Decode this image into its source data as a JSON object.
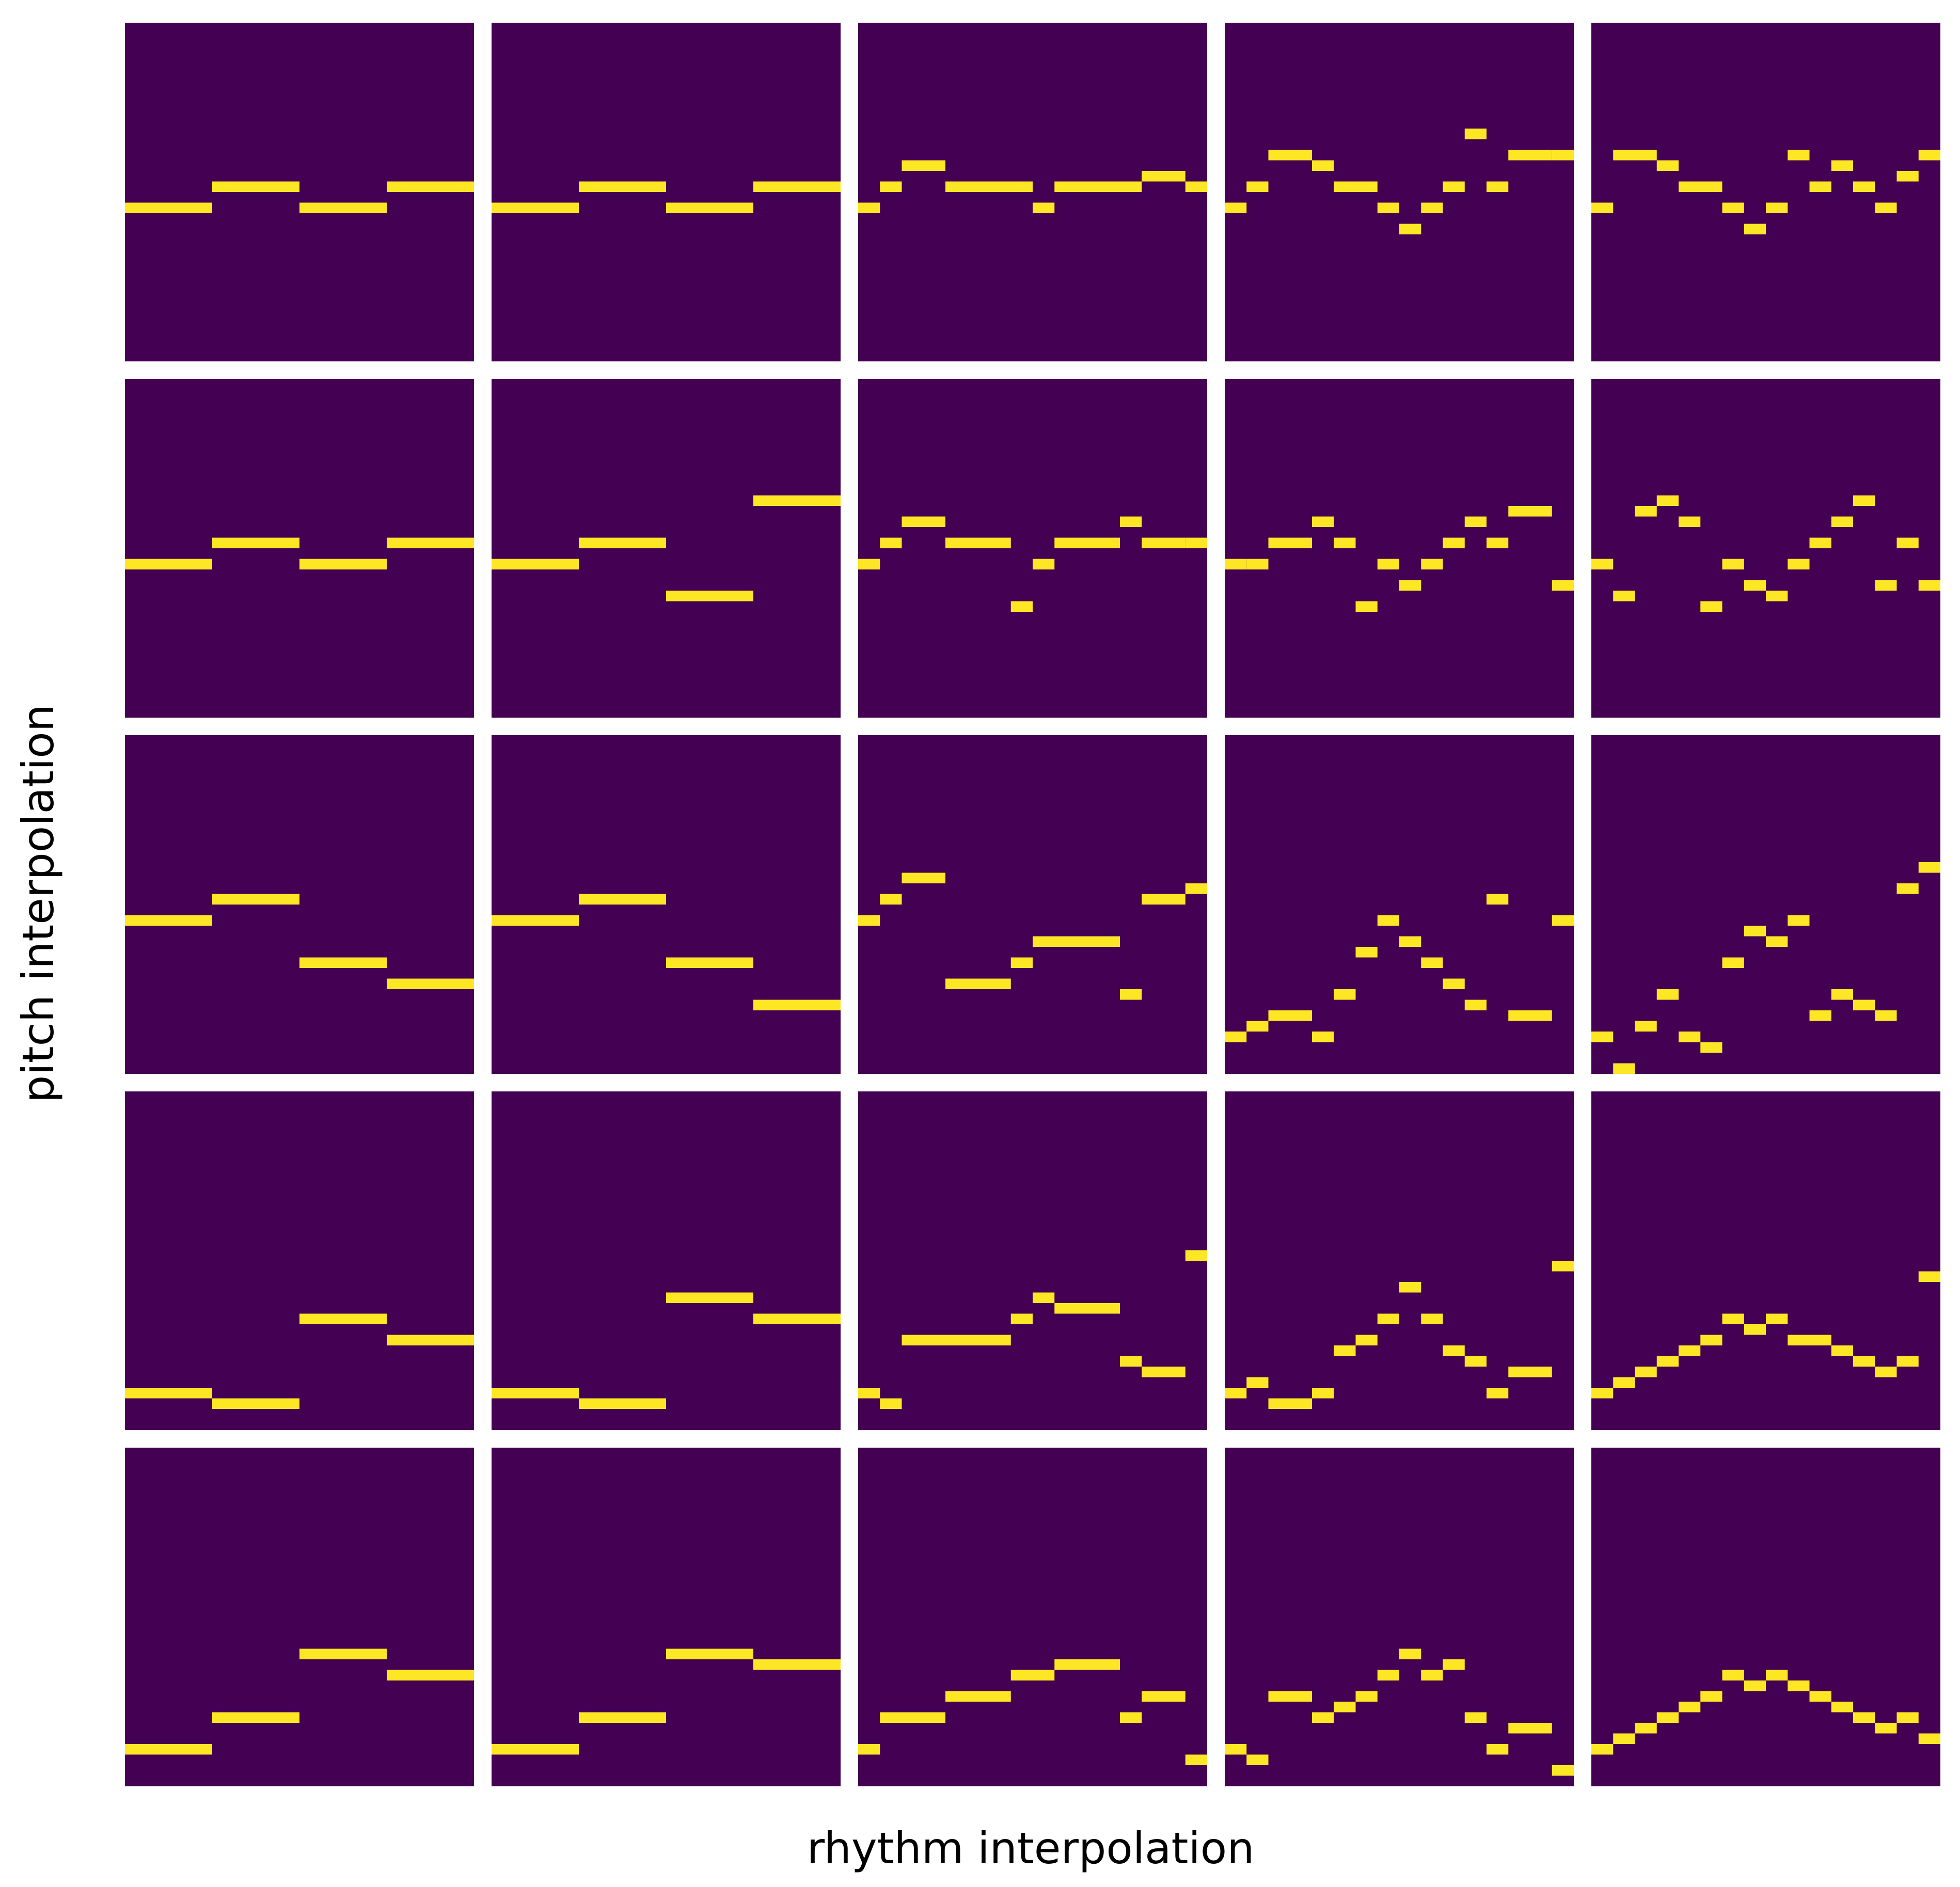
{
  "chart_data": {
    "type": "pianoroll",
    "xlabel": "rhythm interpolation",
    "ylabel": "pitch interpolation",
    "xlim": [
      0,
      16
    ],
    "ylim": [
      0,
      32
    ],
    "background": "#440154",
    "color": "#fde725",
    "panels": [
      [
        [
          [
            0,
            4,
            14
          ],
          [
            4,
            4,
            16
          ],
          [
            8,
            4,
            14
          ],
          [
            12,
            4,
            16
          ]
        ],
        [
          [
            0,
            4,
            14
          ],
          [
            4,
            4,
            16
          ],
          [
            8,
            4,
            14
          ],
          [
            12,
            4,
            16
          ]
        ],
        [
          [
            0,
            1,
            14
          ],
          [
            1,
            1,
            16
          ],
          [
            2,
            2,
            18
          ],
          [
            4,
            4,
            16
          ],
          [
            8,
            1,
            14
          ],
          [
            9,
            3,
            16
          ],
          [
            12,
            1,
            16
          ],
          [
            13,
            2,
            17
          ],
          [
            15,
            1,
            16
          ]
        ],
        [
          [
            0,
            1,
            14
          ],
          [
            1,
            1,
            16
          ],
          [
            2,
            2,
            19
          ],
          [
            4,
            1,
            18
          ],
          [
            5,
            1,
            16
          ],
          [
            6,
            1,
            16
          ],
          [
            7,
            1,
            14
          ],
          [
            8,
            1,
            12
          ],
          [
            9,
            1,
            14
          ],
          [
            10,
            1,
            16
          ],
          [
            11,
            1,
            21
          ],
          [
            12,
            1,
            16
          ],
          [
            13,
            2,
            19
          ],
          [
            15,
            1,
            19
          ]
        ],
        [
          [
            0,
            1,
            14
          ],
          [
            1,
            1,
            19
          ],
          [
            2,
            1,
            19
          ],
          [
            3,
            1,
            18
          ],
          [
            4,
            2,
            16
          ],
          [
            6,
            1,
            14
          ],
          [
            7,
            1,
            12
          ],
          [
            8,
            1,
            14
          ],
          [
            9,
            1,
            19
          ],
          [
            10,
            1,
            16
          ],
          [
            11,
            1,
            18
          ],
          [
            12,
            1,
            16
          ],
          [
            13,
            1,
            14
          ],
          [
            14,
            1,
            17
          ],
          [
            15,
            1,
            19
          ]
        ]
      ],
      [
        [
          [
            0,
            4,
            14
          ],
          [
            4,
            4,
            16
          ],
          [
            8,
            4,
            14
          ],
          [
            12,
            4,
            16
          ]
        ],
        [
          [
            0,
            4,
            14
          ],
          [
            4,
            4,
            16
          ],
          [
            8,
            4,
            11
          ],
          [
            12,
            4,
            20
          ]
        ],
        [
          [
            0,
            1,
            14
          ],
          [
            1,
            1,
            16
          ],
          [
            2,
            2,
            18
          ],
          [
            4,
            3,
            16
          ],
          [
            7,
            1,
            10
          ],
          [
            8,
            1,
            14
          ],
          [
            9,
            3,
            16
          ],
          [
            12,
            1,
            18
          ],
          [
            13,
            2,
            16
          ],
          [
            15,
            1,
            16
          ]
        ],
        [
          [
            0,
            1,
            14
          ],
          [
            1,
            1,
            14
          ],
          [
            2,
            2,
            16
          ],
          [
            4,
            1,
            18
          ],
          [
            5,
            1,
            16
          ],
          [
            6,
            1,
            10
          ],
          [
            7,
            1,
            14
          ],
          [
            8,
            1,
            12
          ],
          [
            9,
            1,
            14
          ],
          [
            10,
            1,
            16
          ],
          [
            11,
            1,
            18
          ],
          [
            12,
            1,
            16
          ],
          [
            13,
            2,
            19
          ],
          [
            15,
            1,
            12
          ]
        ],
        [
          [
            0,
            1,
            14
          ],
          [
            1,
            1,
            11
          ],
          [
            2,
            1,
            19
          ],
          [
            3,
            1,
            20
          ],
          [
            4,
            1,
            18
          ],
          [
            5,
            1,
            10
          ],
          [
            6,
            1,
            14
          ],
          [
            7,
            1,
            12
          ],
          [
            8,
            1,
            11
          ],
          [
            9,
            1,
            14
          ],
          [
            10,
            1,
            16
          ],
          [
            11,
            1,
            18
          ],
          [
            12,
            1,
            20
          ],
          [
            13,
            1,
            12
          ],
          [
            14,
            1,
            16
          ],
          [
            15,
            1,
            12
          ]
        ]
      ],
      [
        [
          [
            0,
            4,
            14
          ],
          [
            4,
            4,
            16
          ],
          [
            8,
            4,
            10
          ],
          [
            12,
            4,
            8
          ]
        ],
        [
          [
            0,
            4,
            14
          ],
          [
            4,
            4,
            16
          ],
          [
            8,
            4,
            10
          ],
          [
            12,
            4,
            6
          ]
        ],
        [
          [
            0,
            1,
            14
          ],
          [
            1,
            1,
            16
          ],
          [
            2,
            2,
            18
          ],
          [
            4,
            3,
            8
          ],
          [
            7,
            1,
            10
          ],
          [
            8,
            4,
            12
          ],
          [
            12,
            1,
            7
          ],
          [
            13,
            2,
            16
          ],
          [
            15,
            1,
            17
          ]
        ],
        [
          [
            0,
            1,
            3
          ],
          [
            1,
            1,
            4
          ],
          [
            2,
            2,
            5
          ],
          [
            4,
            1,
            3
          ],
          [
            5,
            1,
            7
          ],
          [
            6,
            1,
            11
          ],
          [
            7,
            1,
            14
          ],
          [
            8,
            1,
            12
          ],
          [
            9,
            1,
            10
          ],
          [
            10,
            1,
            8
          ],
          [
            11,
            1,
            6
          ],
          [
            12,
            1,
            16
          ],
          [
            13,
            2,
            5
          ],
          [
            15,
            1,
            14
          ]
        ],
        [
          [
            0,
            1,
            3
          ],
          [
            1,
            1,
            0
          ],
          [
            2,
            1,
            4
          ],
          [
            3,
            1,
            7
          ],
          [
            4,
            1,
            3
          ],
          [
            5,
            1,
            2
          ],
          [
            6,
            1,
            10
          ],
          [
            7,
            1,
            13
          ],
          [
            8,
            1,
            12
          ],
          [
            9,
            1,
            14
          ],
          [
            10,
            1,
            5
          ],
          [
            11,
            1,
            7
          ],
          [
            12,
            1,
            6
          ],
          [
            13,
            1,
            5
          ],
          [
            14,
            1,
            17
          ],
          [
            15,
            1,
            19
          ]
        ]
      ],
      [
        [
          [
            0,
            4,
            3
          ],
          [
            4,
            4,
            2
          ],
          [
            8,
            4,
            10
          ],
          [
            12,
            4,
            8
          ]
        ],
        [
          [
            0,
            4,
            3
          ],
          [
            4,
            4,
            2
          ],
          [
            8,
            4,
            12
          ],
          [
            12,
            4,
            10
          ]
        ],
        [
          [
            0,
            1,
            3
          ],
          [
            1,
            1,
            2
          ],
          [
            2,
            5,
            8
          ],
          [
            7,
            1,
            10
          ],
          [
            8,
            1,
            12
          ],
          [
            9,
            3,
            11
          ],
          [
            12,
            1,
            6
          ],
          [
            13,
            2,
            5
          ],
          [
            15,
            1,
            16
          ]
        ],
        [
          [
            0,
            1,
            3
          ],
          [
            1,
            1,
            4
          ],
          [
            2,
            2,
            2
          ],
          [
            4,
            1,
            3
          ],
          [
            5,
            1,
            7
          ],
          [
            6,
            1,
            8
          ],
          [
            7,
            1,
            10
          ],
          [
            8,
            1,
            13
          ],
          [
            9,
            1,
            10
          ],
          [
            10,
            1,
            7
          ],
          [
            11,
            1,
            6
          ],
          [
            12,
            1,
            3
          ],
          [
            13,
            2,
            5
          ],
          [
            15,
            1,
            15
          ]
        ],
        [
          [
            0,
            1,
            3
          ],
          [
            1,
            1,
            4
          ],
          [
            2,
            1,
            5
          ],
          [
            3,
            1,
            6
          ],
          [
            4,
            1,
            7
          ],
          [
            5,
            1,
            8
          ],
          [
            6,
            1,
            10
          ],
          [
            7,
            1,
            9
          ],
          [
            8,
            1,
            10
          ],
          [
            9,
            1,
            8
          ],
          [
            10,
            1,
            8
          ],
          [
            11,
            1,
            7
          ],
          [
            12,
            1,
            6
          ],
          [
            13,
            1,
            5
          ],
          [
            14,
            1,
            6
          ],
          [
            15,
            1,
            14
          ]
        ]
      ],
      [
        [
          [
            0,
            4,
            3
          ],
          [
            4,
            4,
            6
          ],
          [
            8,
            4,
            12
          ],
          [
            12,
            4,
            10
          ]
        ],
        [
          [
            0,
            4,
            3
          ],
          [
            4,
            4,
            6
          ],
          [
            8,
            4,
            12
          ],
          [
            12,
            4,
            11
          ]
        ],
        [
          [
            0,
            1,
            3
          ],
          [
            1,
            1,
            6
          ],
          [
            2,
            2,
            6
          ],
          [
            4,
            3,
            8
          ],
          [
            7,
            2,
            10
          ],
          [
            9,
            3,
            11
          ],
          [
            12,
            1,
            6
          ],
          [
            13,
            2,
            8
          ],
          [
            15,
            1,
            2
          ]
        ],
        [
          [
            0,
            1,
            3
          ],
          [
            1,
            1,
            2
          ],
          [
            2,
            2,
            8
          ],
          [
            4,
            1,
            6
          ],
          [
            5,
            1,
            7
          ],
          [
            6,
            1,
            8
          ],
          [
            7,
            1,
            10
          ],
          [
            8,
            1,
            12
          ],
          [
            9,
            1,
            10
          ],
          [
            10,
            1,
            11
          ],
          [
            11,
            1,
            6
          ],
          [
            12,
            1,
            3
          ],
          [
            13,
            2,
            5
          ],
          [
            15,
            1,
            1
          ]
        ],
        [
          [
            0,
            1,
            3
          ],
          [
            1,
            1,
            4
          ],
          [
            2,
            1,
            5
          ],
          [
            3,
            1,
            6
          ],
          [
            4,
            1,
            7
          ],
          [
            5,
            1,
            8
          ],
          [
            6,
            1,
            10
          ],
          [
            7,
            1,
            9
          ],
          [
            8,
            1,
            10
          ],
          [
            9,
            1,
            9
          ],
          [
            10,
            1,
            8
          ],
          [
            11,
            1,
            7
          ],
          [
            12,
            1,
            6
          ],
          [
            13,
            1,
            5
          ],
          [
            14,
            1,
            6
          ],
          [
            15,
            1,
            4
          ]
        ]
      ]
    ]
  }
}
